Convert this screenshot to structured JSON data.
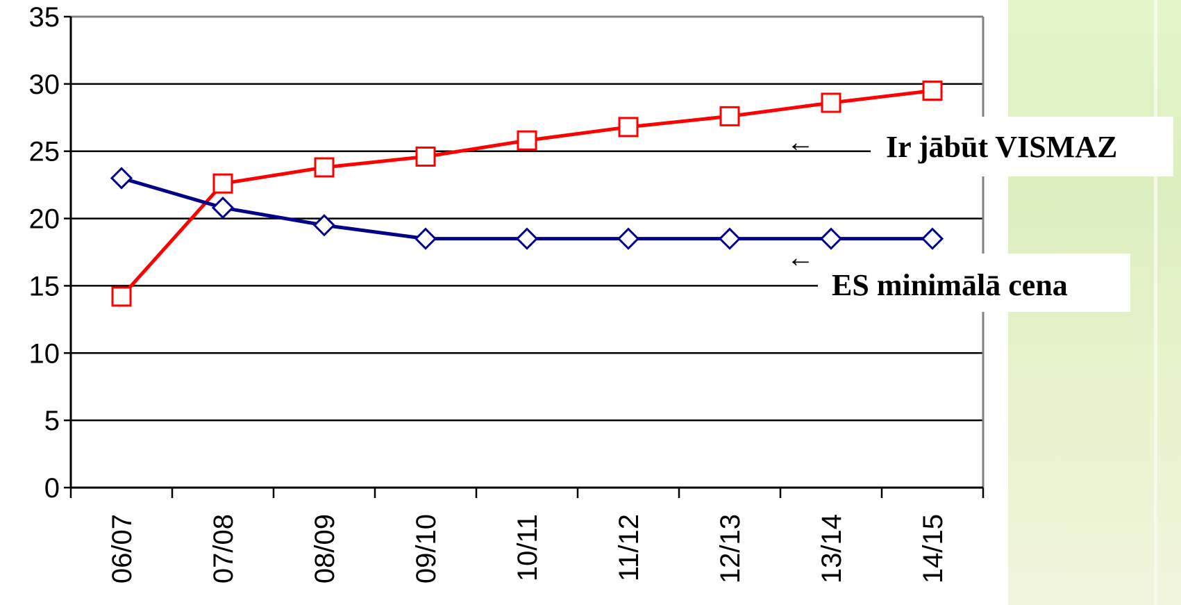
{
  "chart_data": {
    "type": "line",
    "title": "",
    "xlabel": "",
    "ylabel": "",
    "categories": [
      "06/07",
      "07/08",
      "08/09",
      "09/10",
      "10/11",
      "11/12",
      "12/13",
      "13/14",
      "14/15"
    ],
    "ylim": [
      0,
      35
    ],
    "yticks": [
      0,
      5,
      10,
      15,
      20,
      25,
      30,
      35
    ],
    "grid": true,
    "series": [
      {
        "values": [
          14.2,
          22.6,
          23.8,
          24.6,
          25.8,
          26.8,
          27.6,
          28.6,
          29.5
        ],
        "color": "#ff0000",
        "marker": "square"
      },
      {
        "values": [
          23.0,
          20.8,
          19.5,
          18.5,
          18.5,
          18.5,
          18.5,
          18.5,
          18.5
        ],
        "color": "#00008b",
        "marker": "diamond"
      }
    ],
    "annotations": [
      {
        "text": "Ir jābūt VISMAZ",
        "arrow": "←"
      },
      {
        "text": "ES minimālā cena",
        "arrow": "←"
      }
    ]
  },
  "colors": {
    "grid": "#000000",
    "frame": "#808080",
    "background_right": "#e4f6c8"
  }
}
